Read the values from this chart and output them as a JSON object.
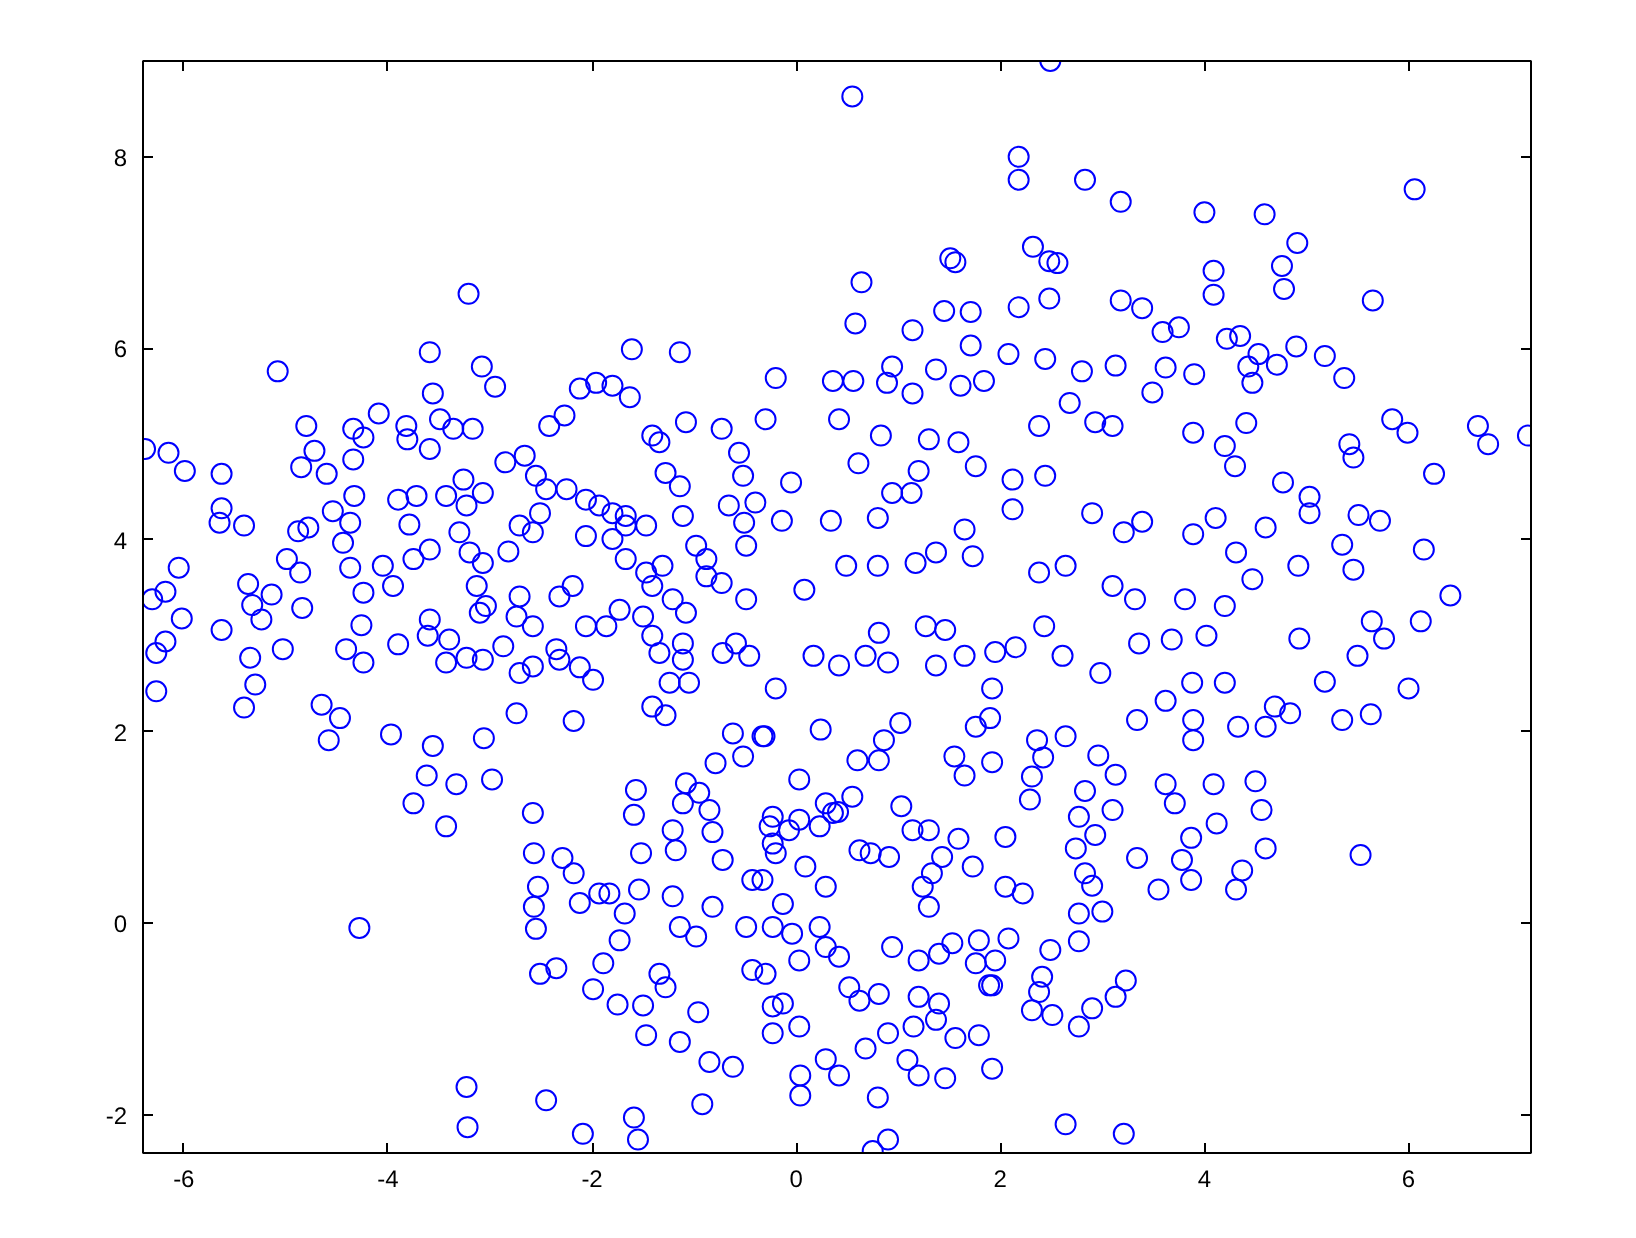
{
  "chart_data": {
    "type": "scatter",
    "color": "#0000ff",
    "marker": "circle",
    "xlim": [
      -6.4,
      7.2
    ],
    "ylim": [
      -2.4,
      9
    ],
    "xticks": [
      -6,
      -4,
      -2,
      0,
      2,
      4,
      6
    ],
    "yticks": [
      -2,
      0,
      2,
      4,
      6,
      8
    ],
    "x": [
      2.49,
      0.55,
      2.18,
      2.18,
      2.83,
      3.18,
      4.0,
      4.59,
      6.06,
      4.91,
      4.76,
      4.78,
      4.09,
      4.09,
      2.32,
      2.48,
      2.56,
      1.51,
      1.56,
      0.64,
      0.58,
      5.65,
      3.18,
      3.39,
      2.18,
      1.45,
      1.71,
      1.14,
      2.48,
      5.18,
      5.37,
      6.68,
      6.78,
      7.17,
      5.84,
      5.99,
      6.25,
      6.15,
      6.41,
      6.12,
      -0.2,
      -0.3,
      0.36,
      0.56,
      0.42,
      0.94,
      0.89,
      1.14,
      0.61,
      -0.05,
      -0.14,
      0.34,
      0.08,
      0.49,
      0.8,
      0.8,
      0.83,
      1.3,
      1.37,
      1.61,
      1.84,
      1.71,
      2.08,
      2.44,
      2.8,
      3.13,
      3.62,
      3.9,
      3.75,
      3.59,
      4.22,
      4.35,
      4.53,
      4.43,
      4.47,
      4.9,
      4.71,
      2.68,
      3.49,
      4.41,
      5.42,
      5.46,
      4.77,
      5.03,
      5.03,
      5.51,
      5.72,
      5.35,
      5.46,
      4.6,
      4.31,
      4.11,
      3.89,
      3.39,
      3.21,
      2.9,
      2.44,
      2.12,
      2.12,
      1.76,
      1.59,
      2.38,
      2.93,
      3.1,
      3.89,
      4.2,
      4.3,
      2.38,
      2.64,
      3.1,
      3.32,
      3.81,
      4.2,
      4.47,
      4.92,
      5.64,
      1.27,
      1.46,
      0.81,
      1.65,
      1.73,
      1.37,
      1.17,
      0.94,
      1.13,
      1.2,
      0.17,
      0.42,
      0.68,
      0.9,
      1.37,
      1.65,
      1.95,
      2.15,
      2.43,
      2.61,
      2.98,
      3.36,
      3.68,
      4.02,
      4.93,
      5.5,
      5.76,
      6.0,
      5.63,
      5.35,
      5.18,
      4.84,
      4.69,
      4.33,
      4.6,
      4.2,
      3.88,
      3.89,
      3.89,
      3.62,
      3.34,
      3.62,
      3.71,
      4.09,
      4.12,
      4.5,
      4.56,
      4.6,
      4.37,
      4.31,
      5.53,
      3.87,
      3.78,
      3.87,
      3.55,
      3.34,
      2.96,
      3.13,
      2.83,
      2.93,
      3.1,
      2.77,
      2.74,
      2.83,
      2.9,
      2.77,
      3.0,
      2.77,
      2.49,
      3.23,
      3.13,
      2.9,
      2.77,
      2.41,
      2.38,
      2.31,
      2.51,
      2.64,
      3.21,
      2.36,
      2.42,
      2.31,
      2.29,
      2.64,
      1.92,
      1.76,
      1.9,
      1.92,
      1.55,
      1.65,
      2.05,
      2.22,
      2.05,
      1.73,
      2.08,
      1.95,
      1.92,
      1.92,
      1.79,
      1.56,
      1.46,
      1.2,
      1.09,
      0.8,
      0.9,
      0.75,
      0.04,
      0.04,
      0.42,
      0.29,
      0.68,
      0.9,
      1.15,
      1.37,
      1.02,
      0.86,
      0.6,
      0.81,
      0.24,
      -0.2,
      -0.31,
      1.03,
      1.14,
      1.3,
      1.59,
      1.43,
      1.33,
      1.24,
      1.3,
      0.91,
      0.62,
      0.73,
      0.41,
      0.03,
      -0.23,
      0.55,
      0.29,
      0.94,
      1.2,
      1.4,
      1.53,
      1.79,
      1.76,
      1.89,
      1.2,
      1.4,
      0.81,
      0.62,
      0.52,
      0.29,
      0.42,
      0.23,
      -0.13,
      -0.04,
      0.03,
      -0.13,
      0.03,
      -0.23,
      -0.3,
      -0.23,
      -0.33,
      -0.26,
      -0.2,
      0.03,
      0.23,
      0.36,
      0.09,
      0.29,
      -2.45,
      -2.09,
      -1.59,
      -1.55,
      -0.92,
      -3.23,
      -3.22,
      -2.58,
      -2.57,
      -2.53,
      -2.57,
      -2.55,
      -2.51,
      -2.35,
      -1.99,
      -1.75,
      -1.5,
      -1.47,
      -1.14,
      -0.96,
      -0.85,
      -0.62,
      -2.29,
      -2.18,
      -2.12,
      -1.93,
      -1.83,
      -1.68,
      -1.73,
      -1.89,
      -1.57,
      -1.59,
      -1.52,
      -1.54,
      -1.21,
      -1.14,
      -0.98,
      -1.34,
      -1.28,
      -1.08,
      -0.95,
      -1.11,
      -1.21,
      -1.18,
      -0.85,
      -0.82,
      -0.62,
      -0.33,
      -0.79,
      -0.52,
      -0.72,
      -0.43,
      -0.82,
      -0.49,
      -0.43,
      -0.23,
      -0.23,
      -0.07,
      -2.74,
      -2.18,
      -6.38,
      -6.15,
      -5.99,
      -5.63,
      -5.63,
      -5.65,
      -5.41,
      -6.05,
      -6.18,
      -6.31,
      -6.02,
      -6.18,
      -6.27,
      -6.27,
      -5.63,
      -5.37,
      -5.33,
      -5.24,
      -5.14,
      -5.35,
      -5.3,
      -5.41,
      -5.03,
      -5.08,
      -4.99,
      -4.86,
      -4.84,
      -4.8,
      -4.85,
      -4.72,
      -4.88,
      -4.78,
      -4.65,
      -4.47,
      -4.58,
      -3.97,
      -3.56,
      -3.62,
      -3.33,
      -3.75,
      -3.43,
      -3.06,
      -2.98,
      -3.21,
      -3.59,
      -3.56,
      -3.08,
      -2.95,
      -4.09,
      -4.34,
      -4.24,
      -4.34,
      -4.6,
      -4.33,
      -4.54,
      -4.37,
      -4.44,
      -4.37,
      -4.24,
      -4.26,
      -4.41,
      -4.24,
      -3.9,
      -3.82,
      -3.81,
      -3.59,
      -3.49,
      -3.36,
      -3.17,
      -3.9,
      -3.72,
      -3.79,
      -3.43,
      -3.26,
      -3.23,
      -3.07,
      -3.59,
      -3.75,
      -4.05,
      -3.95,
      -3.3,
      -3.2,
      -3.07,
      -3.13,
      -3.04,
      -3.1,
      -3.59,
      -3.61,
      -3.4,
      -3.43,
      -3.23,
      -3.07,
      -2.87,
      -2.82,
      -2.71,
      -2.58,
      -2.51,
      -2.55,
      -2.66,
      -2.85,
      -2.42,
      -2.27,
      -2.12,
      -1.96,
      -1.8,
      -1.63,
      -1.61,
      -1.14,
      -1.08,
      -0.73,
      -2.32,
      -2.19,
      -2.06,
      -1.86,
      -2.71,
      -2.74,
      -2.58,
      -2.35,
      -2.32,
      -2.12,
      -1.99,
      -2.71,
      -2.58,
      -2.45,
      -2.25,
      -2.06,
      -1.93,
      -1.8,
      -1.67,
      -2.06,
      -1.8,
      -1.67,
      -1.47,
      -1.67,
      -1.47,
      -1.41,
      -1.31,
      -1.73,
      -1.5,
      -1.41,
      -1.34,
      -1.21,
      -1.08,
      -1.11,
      -1.11,
      -1.05,
      -1.24,
      -1.41,
      -1.28,
      -1.41,
      -1.34,
      -1.28,
      -1.14,
      -1.11,
      -0.98,
      -0.88,
      -0.88,
      -0.73,
      -0.66,
      -0.52,
      -0.56,
      -0.4,
      -0.51,
      -0.49,
      -0.49,
      -0.72,
      -0.59,
      -0.46,
      -4.28
    ],
    "values": [
      9.0,
      8.63,
      8.0,
      7.76,
      7.76,
      7.53,
      7.42,
      7.4,
      7.66,
      7.1,
      6.86,
      6.62,
      6.81,
      6.56,
      7.06,
      6.91,
      6.89,
      6.94,
      6.9,
      6.69,
      6.26,
      6.5,
      6.5,
      6.42,
      6.43,
      6.39,
      6.38,
      6.19,
      6.52,
      5.92,
      5.69,
      5.19,
      5.0,
      5.09,
      5.26,
      5.12,
      4.69,
      3.9,
      3.42,
      3.15,
      5.69,
      5.26,
      5.66,
      5.66,
      5.26,
      5.81,
      5.64,
      5.53,
      4.8,
      4.6,
      4.2,
      4.2,
      3.48,
      3.73,
      3.73,
      4.23,
      5.09,
      5.05,
      5.78,
      5.61,
      5.66,
      6.03,
      5.94,
      5.89,
      5.76,
      5.82,
      5.8,
      5.73,
      6.22,
      6.17,
      6.1,
      6.13,
      5.94,
      5.81,
      5.64,
      6.02,
      5.83,
      5.43,
      5.54,
      5.22,
      5.0,
      4.86,
      4.6,
      4.45,
      4.28,
      4.26,
      4.2,
      3.95,
      3.69,
      4.13,
      3.87,
      4.23,
      4.06,
      4.19,
      4.08,
      4.28,
      4.67,
      4.63,
      4.32,
      4.77,
      5.02,
      5.19,
      5.23,
      5.19,
      5.12,
      4.98,
      4.77,
      3.66,
      3.73,
      3.52,
      3.38,
      3.38,
      3.31,
      3.59,
      3.73,
      3.15,
      3.1,
      3.06,
      3.03,
      4.11,
      3.83,
      3.87,
      3.76,
      4.49,
      4.49,
      4.72,
      2.79,
      2.69,
      2.79,
      2.72,
      2.69,
      2.79,
      2.83,
      2.88,
      3.1,
      2.79,
      2.61,
      2.92,
      2.96,
      3.0,
      2.97,
      2.79,
      2.97,
      2.45,
      2.18,
      2.12,
      2.52,
      2.19,
      2.26,
      2.05,
      2.05,
      2.51,
      2.51,
      2.12,
      1.91,
      2.32,
      2.12,
      1.45,
      1.25,
      1.45,
      1.04,
      1.48,
      1.18,
      0.78,
      0.55,
      0.35,
      0.71,
      0.89,
      0.66,
      0.45,
      0.35,
      0.68,
      1.75,
      1.55,
      1.38,
      0.92,
      1.18,
      1.11,
      0.78,
      0.52,
      0.39,
      0.1,
      0.12,
      -0.19,
      -0.28,
      -0.6,
      -0.77,
      -0.89,
      -1.08,
      -0.56,
      -0.72,
      -0.91,
      -0.96,
      -2.1,
      -2.2,
      1.91,
      1.73,
      1.53,
      1.29,
      1.95,
      2.45,
      2.05,
      2.14,
      1.68,
      1.74,
      1.54,
      0.9,
      0.31,
      0.38,
      0.59,
      -0.16,
      -0.39,
      -0.65,
      -1.52,
      -1.17,
      -1.2,
      -1.62,
      -1.59,
      -1.43,
      -1.82,
      -2.26,
      -2.38,
      -1.59,
      -1.8,
      -1.59,
      -1.42,
      -1.31,
      -1.15,
      -1.08,
      -1.01,
      2.09,
      1.91,
      1.7,
      1.7,
      2.02,
      2.45,
      1.95,
      1.22,
      0.97,
      0.97,
      0.88,
      0.69,
      0.52,
      0.38,
      0.17,
      0.69,
      0.76,
      0.73,
      1.16,
      1.5,
      1.11,
      1.32,
      1.25,
      -0.25,
      -0.39,
      -0.32,
      -0.21,
      -0.18,
      -0.42,
      -0.65,
      -0.77,
      -0.84,
      -0.74,
      -0.81,
      -0.67,
      -0.25,
      -0.35,
      -0.04,
      0.2,
      -0.11,
      -0.39,
      -0.84,
      -1.08,
      -1.15,
      -0.53,
      -0.04,
      0.45,
      1.01,
      0.73,
      1.08,
      1.01,
      1.15,
      0.59,
      0.38,
      -1.85,
      -2.2,
      -2.03,
      -2.26,
      -1.89,
      -1.71,
      -2.13,
      1.15,
      0.73,
      0.38,
      0.17,
      -0.06,
      -0.53,
      -0.47,
      -0.69,
      -0.85,
      -0.86,
      -1.17,
      -1.24,
      -0.93,
      -1.45,
      -1.5,
      0.68,
      0.52,
      0.21,
      0.31,
      0.31,
      0.1,
      -0.18,
      -0.42,
      1.39,
      1.13,
      0.73,
      0.35,
      0.28,
      -0.04,
      -0.14,
      -0.53,
      -0.67,
      1.46,
      1.36,
      1.25,
      0.97,
      0.76,
      1.18,
      0.95,
      1.98,
      1.95,
      1.67,
      1.74,
      0.66,
      0.45,
      0.17,
      -0.04,
      -0.49,
      -0.87,
      0.83,
      0.97,
      2.19,
      2.11,
      4.95,
      4.91,
      4.72,
      4.69,
      4.33,
      4.18,
      4.15,
      3.71,
      3.46,
      3.38,
      3.18,
      2.94,
      2.82,
      2.42,
      3.06,
      3.54,
      3.32,
      3.17,
      3.43,
      2.77,
      2.49,
      2.25,
      2.86,
      5.76,
      3.8,
      3.66,
      3.29,
      5.19,
      4.76,
      4.93,
      4.09,
      4.13,
      2.28,
      2.14,
      1.91,
      1.97,
      1.85,
      1.54,
      1.45,
      1.25,
      1.01,
      1.93,
      1.5,
      6.57,
      5.96,
      5.53,
      5.81,
      5.6,
      5.32,
      5.16,
      5.07,
      4.84,
      4.69,
      4.46,
      4.3,
      4.18,
      3.97,
      3.71,
      3.45,
      3.11,
      2.86,
      2.72,
      2.91,
      5.19,
      5.05,
      4.95,
      5.26,
      5.16,
      5.16,
      4.42,
      4.46,
      4.16,
      4.46,
      4.63,
      4.36,
      4.49,
      3.9,
      3.8,
      3.73,
      3.52,
      4.08,
      3.87,
      3.76,
      3.52,
      3.31,
      3.24,
      3.17,
      3.0,
      2.96,
      2.72,
      2.77,
      2.75,
      2.89,
      3.88,
      4.15,
      4.08,
      4.28,
      4.67,
      4.88,
      4.81,
      5.19,
      5.3,
      5.58,
      5.64,
      5.61,
      5.49,
      5.99,
      5.96,
      5.23,
      5.16,
      3.41,
      3.52,
      3.1,
      3.1,
      3.41,
      3.2,
      3.1,
      2.86,
      2.75,
      2.67,
      2.54,
      2.61,
      2.68,
      4.53,
      4.53,
      4.42,
      4.36,
      4.28,
      4.25,
      4.04,
      4.01,
      4.15,
      4.15,
      3.8,
      3.66,
      3.52,
      3.73,
      3.27,
      3.2,
      3.0,
      2.82,
      3.38,
      3.24,
      2.92,
      2.75,
      2.51,
      2.51,
      2.26,
      2.17,
      5.09,
      5.02,
      4.7,
      4.56,
      4.25,
      3.94,
      3.8,
      3.62,
      3.55,
      4.36,
      4.67,
      4.91,
      4.39,
      4.18,
      3.94,
      3.38,
      2.82,
      2.92,
      2.79,
      -0.05
    ]
  }
}
